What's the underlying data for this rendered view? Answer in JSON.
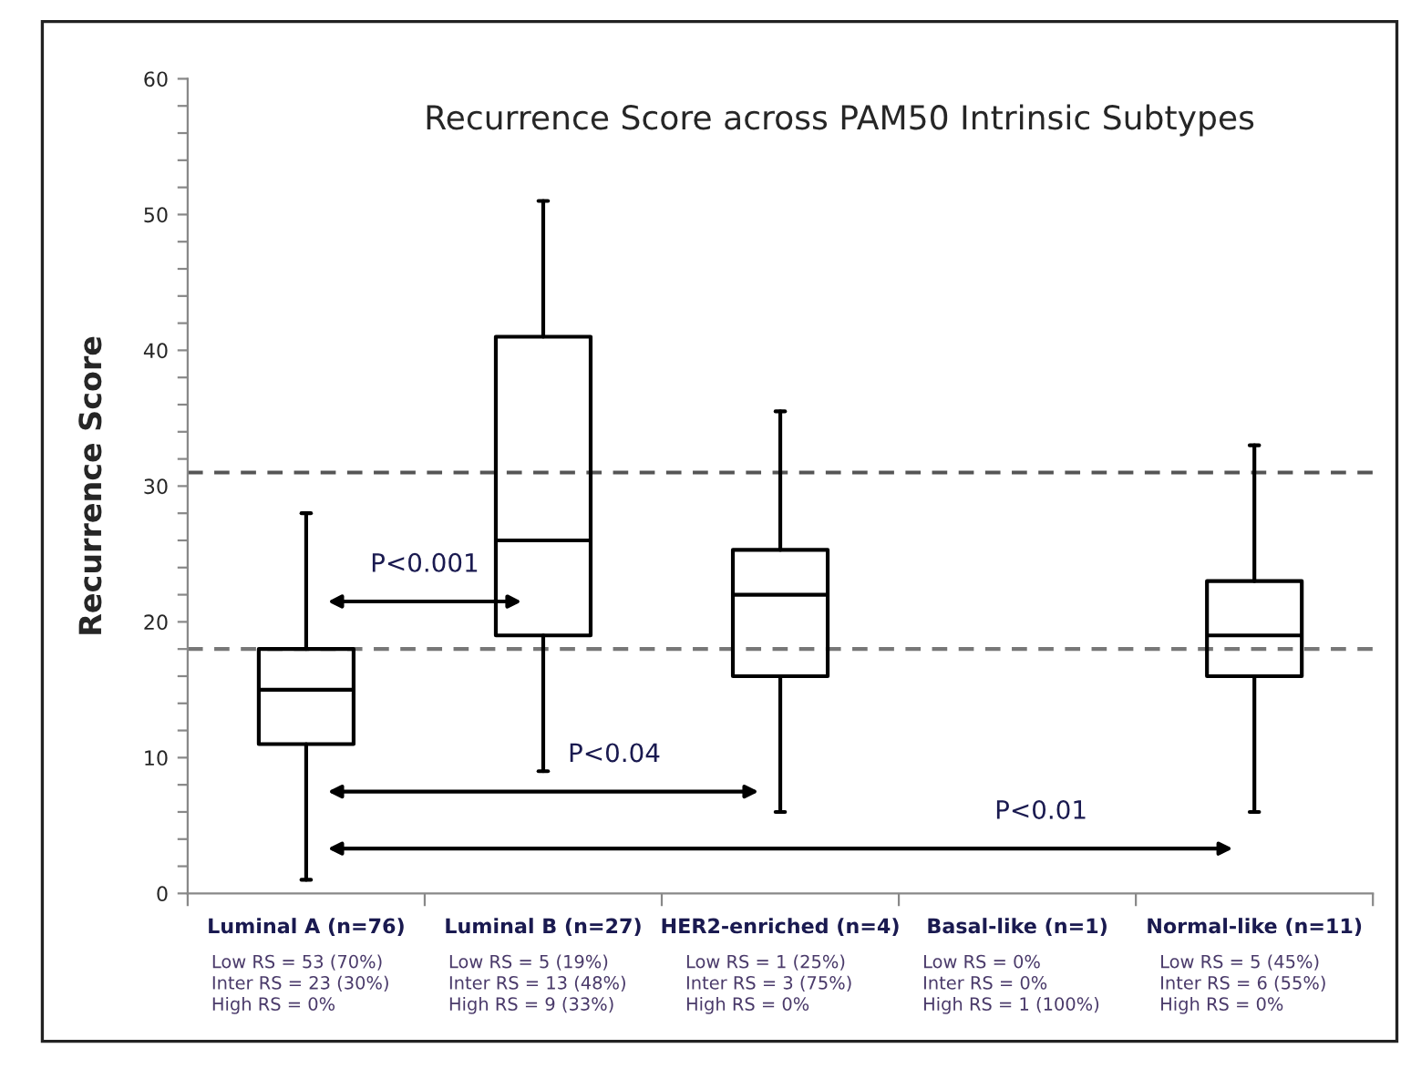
{
  "chart_data": {
    "type": "box",
    "title": "Recurrence Score across PAM50 Intrinsic Subtypes",
    "ylabel": "Recurrence Score",
    "categories": [
      "Luminal A (n=76)\nLow RS = 53 (70%)\nInter RS = 23 (30%)\nHigh RS = 0%",
      "Luminal B (n=27)\nLow RS = 5 (19%)\nInter RS = 13 (48%)\nHigh RS = 9 (33%)",
      "HER2-enriched (n=4)\nLow RS = 1 (25%)\nInter RS = 3 (75%)\nHigh RS = 0%",
      "Basal-like (n=1)\nLow RS = 0%\nInter RS = 0%\nHigh RS = 1 (100%)",
      "Normal-like (n=11)\nLow RS = 5 (45%)\nInter RS = 6 (55%)\nHigh RS = 0%"
    ],
    "boxes": [
      {
        "low": 1,
        "q1": 11,
        "median": 15,
        "q3": 18,
        "high": 28
      },
      {
        "low": 9,
        "q1": 19,
        "median": 26,
        "q3": 41,
        "high": 51
      },
      {
        "low": 6,
        "q1": 16,
        "median": 22,
        "q3": 25.3,
        "high": 35.5
      },
      null,
      {
        "low": 6,
        "q1": 16,
        "median": 19,
        "q3": 23,
        "high": 33
      }
    ],
    "ylim": [
      0,
      60
    ],
    "yticks": [
      0,
      {
        "value": 2,
        "label": null
      },
      {
        "value": 4,
        "label": null
      },
      {
        "value": 6,
        "label": null
      },
      {
        "value": 8,
        "label": null
      },
      10,
      {
        "value": 12,
        "label": null
      },
      {
        "value": 14,
        "label": null
      },
      {
        "value": 16,
        "label": null
      },
      {
        "value": 18,
        "label": null
      },
      20,
      {
        "value": 22,
        "label": null
      },
      {
        "value": 24,
        "label": null
      },
      {
        "value": 26,
        "label": null
      },
      {
        "value": 28,
        "label": null
      },
      30,
      {
        "value": 32,
        "label": null
      },
      {
        "value": 34,
        "label": null
      },
      {
        "value": 36,
        "label": null
      },
      {
        "value": 38,
        "label": null
      },
      40,
      {
        "value": 42,
        "label": null
      },
      {
        "value": 44,
        "label": null
      },
      {
        "value": 46,
        "label": null
      },
      {
        "value": 48,
        "label": null
      },
      50,
      {
        "value": 52,
        "label": null
      },
      {
        "value": 54,
        "label": null
      },
      {
        "value": 56,
        "label": null
      },
      {
        "value": 58,
        "label": null
      },
      60
    ],
    "ref_lines": [
      {
        "axis": "y",
        "value": 31,
        "color": "#555555",
        "line_style": "dashed"
      },
      {
        "axis": "y",
        "value": 18,
        "color": "#777777",
        "line_style": "dashed"
      }
    ],
    "annotations": [
      "P<0.001",
      "P<0.04",
      "P<0.01"
    ],
    "grid": false,
    "legend": false
  }
}
